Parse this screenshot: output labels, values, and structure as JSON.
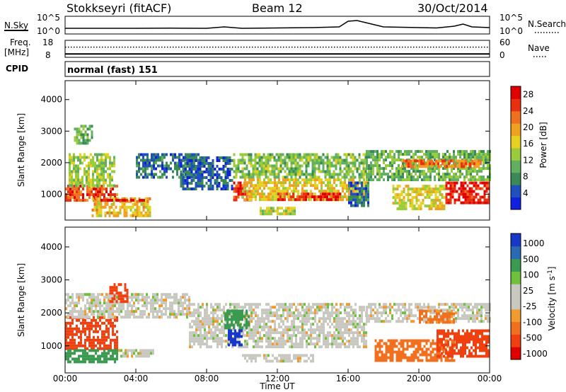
{
  "header": {
    "station": "Stokkseyri (fitACF)",
    "beam": "Beam 12",
    "date": "30/Oct/2014"
  },
  "panels": {
    "nsky_label": "N.Sky",
    "nsearch_label": "N.Search",
    "nsky_ticks": [
      "10^5",
      "10^0"
    ],
    "nsearch_ticks": [
      "10^5",
      "10^0"
    ],
    "freq_label": "Freq.",
    "freq_unit": "[MHz]",
    "freq_ticks": [
      "18",
      "8"
    ],
    "nave_label": "Nave",
    "nave_ticks": [
      "60",
      "0"
    ],
    "cpid_label": "CPID",
    "cpid_value": "normal (fast) 151"
  },
  "colors": {
    "frame": "#000000",
    "power_scale": [
      "#1020e0",
      "#2050c0",
      "#3a8a55",
      "#60b060",
      "#9acb3a",
      "#e6d020",
      "#f0a020",
      "#f07020",
      "#e83010",
      "#e00000"
    ],
    "velocity_scale": [
      "#e00000",
      "#f04010",
      "#f07020",
      "#f09a30",
      "#c8c8c0",
      "#c8c8c0",
      "#70c040",
      "#3a9a50",
      "#2a6ab0",
      "#1838c8"
    ]
  },
  "chart_data": [
    {
      "type": "line",
      "name": "nsky-panel",
      "x": [
        0,
        2,
        4,
        6,
        8,
        9,
        10,
        12,
        14,
        15.5,
        16,
        16.5,
        17,
        18,
        20,
        21,
        22,
        22.5,
        23,
        24
      ],
      "series": [
        {
          "name": "N.Sky",
          "values": [
            1.6,
            1.6,
            1.6,
            1.65,
            1.6,
            2.0,
            1.6,
            1.7,
            1.8,
            2.0,
            3.6,
            3.8,
            3.2,
            2.0,
            1.8,
            1.7,
            2.2,
            2.8,
            2.0,
            1.8
          ]
        }
      ],
      "ylim": [
        0,
        5
      ],
      "xlim": [
        0,
        24
      ]
    },
    {
      "type": "line",
      "name": "freq-nave-panel",
      "x": [
        0,
        4,
        8,
        12,
        16,
        20,
        24
      ],
      "series": [
        {
          "name": "Freq.",
          "values": [
            10.0,
            10.0,
            10.0,
            10.0,
            10.0,
            10.0,
            10.0
          ]
        },
        {
          "name": "Nave",
          "values": [
            36,
            36,
            36,
            36,
            36,
            36,
            36
          ]
        }
      ],
      "ylim": [
        8,
        18
      ],
      "xlim": [
        0,
        24
      ]
    },
    {
      "type": "heatmap",
      "name": "power-panel",
      "xlabel": "Time UT",
      "ylabel": "Slant Range [km]",
      "xlim": [
        0,
        24
      ],
      "ylim": [
        180,
        4600
      ],
      "x_ticks": [
        "00:00",
        "04:00",
        "08:00",
        "12:00",
        "16:00",
        "20:00",
        "00:00"
      ],
      "y_ticks": [
        1000,
        2000,
        3000,
        4000
      ],
      "colorbar_label": "Power [dB]",
      "colorbar_ticks": [
        "4",
        "8",
        "12",
        "16",
        "20",
        "24",
        "28"
      ],
      "colorbar_range": [
        0,
        30
      ],
      "regions": [
        {
          "x0": 0.0,
          "x1": 3.0,
          "y0": 800,
          "y1": 1300,
          "value": 24
        },
        {
          "x0": 0.2,
          "x1": 2.8,
          "y0": 1300,
          "y1": 2300,
          "value": 13
        },
        {
          "x0": 0.5,
          "x1": 1.5,
          "y0": 2600,
          "y1": 3200,
          "value": 10
        },
        {
          "x0": 1.5,
          "x1": 4.8,
          "y0": 350,
          "y1": 900,
          "value": 18
        },
        {
          "x0": 2.0,
          "x1": 4.5,
          "y0": 780,
          "y1": 850,
          "value": 28
        },
        {
          "x0": 4.0,
          "x1": 7.5,
          "y0": 1500,
          "y1": 2300,
          "value": 6
        },
        {
          "x0": 6.5,
          "x1": 9.5,
          "y0": 1200,
          "y1": 2200,
          "value": 5
        },
        {
          "x0": 9.5,
          "x1": 17.0,
          "y0": 1500,
          "y1": 2300,
          "value": 12
        },
        {
          "x0": 9.5,
          "x1": 10.5,
          "y0": 800,
          "y1": 1400,
          "value": 26
        },
        {
          "x0": 10.0,
          "x1": 17.0,
          "y0": 800,
          "y1": 1500,
          "value": 17
        },
        {
          "x0": 12.0,
          "x1": 15.5,
          "y0": 850,
          "y1": 1050,
          "value": 26
        },
        {
          "x0": 11.0,
          "x1": 13.0,
          "y0": 400,
          "y1": 600,
          "value": 15
        },
        {
          "x0": 17.0,
          "x1": 24.0,
          "y0": 1500,
          "y1": 2400,
          "value": 11
        },
        {
          "x0": 18.5,
          "x1": 21.5,
          "y0": 500,
          "y1": 1300,
          "value": 16
        },
        {
          "x0": 21.5,
          "x1": 24.0,
          "y0": 700,
          "y1": 1400,
          "value": 27
        },
        {
          "x0": 19.0,
          "x1": 23.5,
          "y0": 1900,
          "y1": 2100,
          "value": 22
        },
        {
          "x0": 16.0,
          "x1": 17.2,
          "y0": 600,
          "y1": 1400,
          "value": 6
        }
      ]
    },
    {
      "type": "heatmap",
      "name": "velocity-panel",
      "xlabel": "Time UT",
      "ylabel": "Slant Range [km]",
      "xlim": [
        0,
        24
      ],
      "ylim": [
        180,
        4600
      ],
      "x_ticks": [
        "00:00",
        "04:00",
        "08:00",
        "12:00",
        "16:00",
        "20:00",
        "00:00"
      ],
      "y_ticks": [
        1000,
        2000,
        3000,
        4000
      ],
      "colorbar_label": "Velocity [m s^-1]",
      "colorbar_ticks": [
        "1000",
        "500",
        "100",
        "25",
        "-25",
        "-100",
        "-500",
        "-1000"
      ],
      "colorbar_range": [
        -1000,
        1000
      ],
      "regions": [
        {
          "x0": 0.0,
          "x1": 3.0,
          "y0": 900,
          "y1": 1900,
          "value": -300
        },
        {
          "x0": 0.0,
          "x1": 3.0,
          "y0": 500,
          "y1": 900,
          "value": 200
        },
        {
          "x0": 3.0,
          "x1": 5.0,
          "y0": 700,
          "y1": 900,
          "value": 0
        },
        {
          "x0": 0.0,
          "x1": 7.0,
          "y0": 1900,
          "y1": 2600,
          "value": 0
        },
        {
          "x0": 2.5,
          "x1": 3.5,
          "y0": 2300,
          "y1": 2900,
          "value": -300
        },
        {
          "x0": 7.0,
          "x1": 17.0,
          "y0": 1000,
          "y1": 2300,
          "value": 0
        },
        {
          "x0": 9.2,
          "x1": 10.0,
          "y0": 1000,
          "y1": 1500,
          "value": 900
        },
        {
          "x0": 9.0,
          "x1": 10.4,
          "y0": 1500,
          "y1": 2100,
          "value": 150
        },
        {
          "x0": 10.0,
          "x1": 14.0,
          "y0": 500,
          "y1": 750,
          "value": 0
        },
        {
          "x0": 17.0,
          "x1": 24.0,
          "y0": 1700,
          "y1": 2300,
          "value": 0
        },
        {
          "x0": 17.5,
          "x1": 22.0,
          "y0": 550,
          "y1": 1200,
          "value": -150
        },
        {
          "x0": 21.0,
          "x1": 24.0,
          "y0": 700,
          "y1": 1500,
          "value": -400
        },
        {
          "x0": 20.0,
          "x1": 22.0,
          "y0": 1700,
          "y1": 2100,
          "value": -120
        }
      ]
    }
  ]
}
